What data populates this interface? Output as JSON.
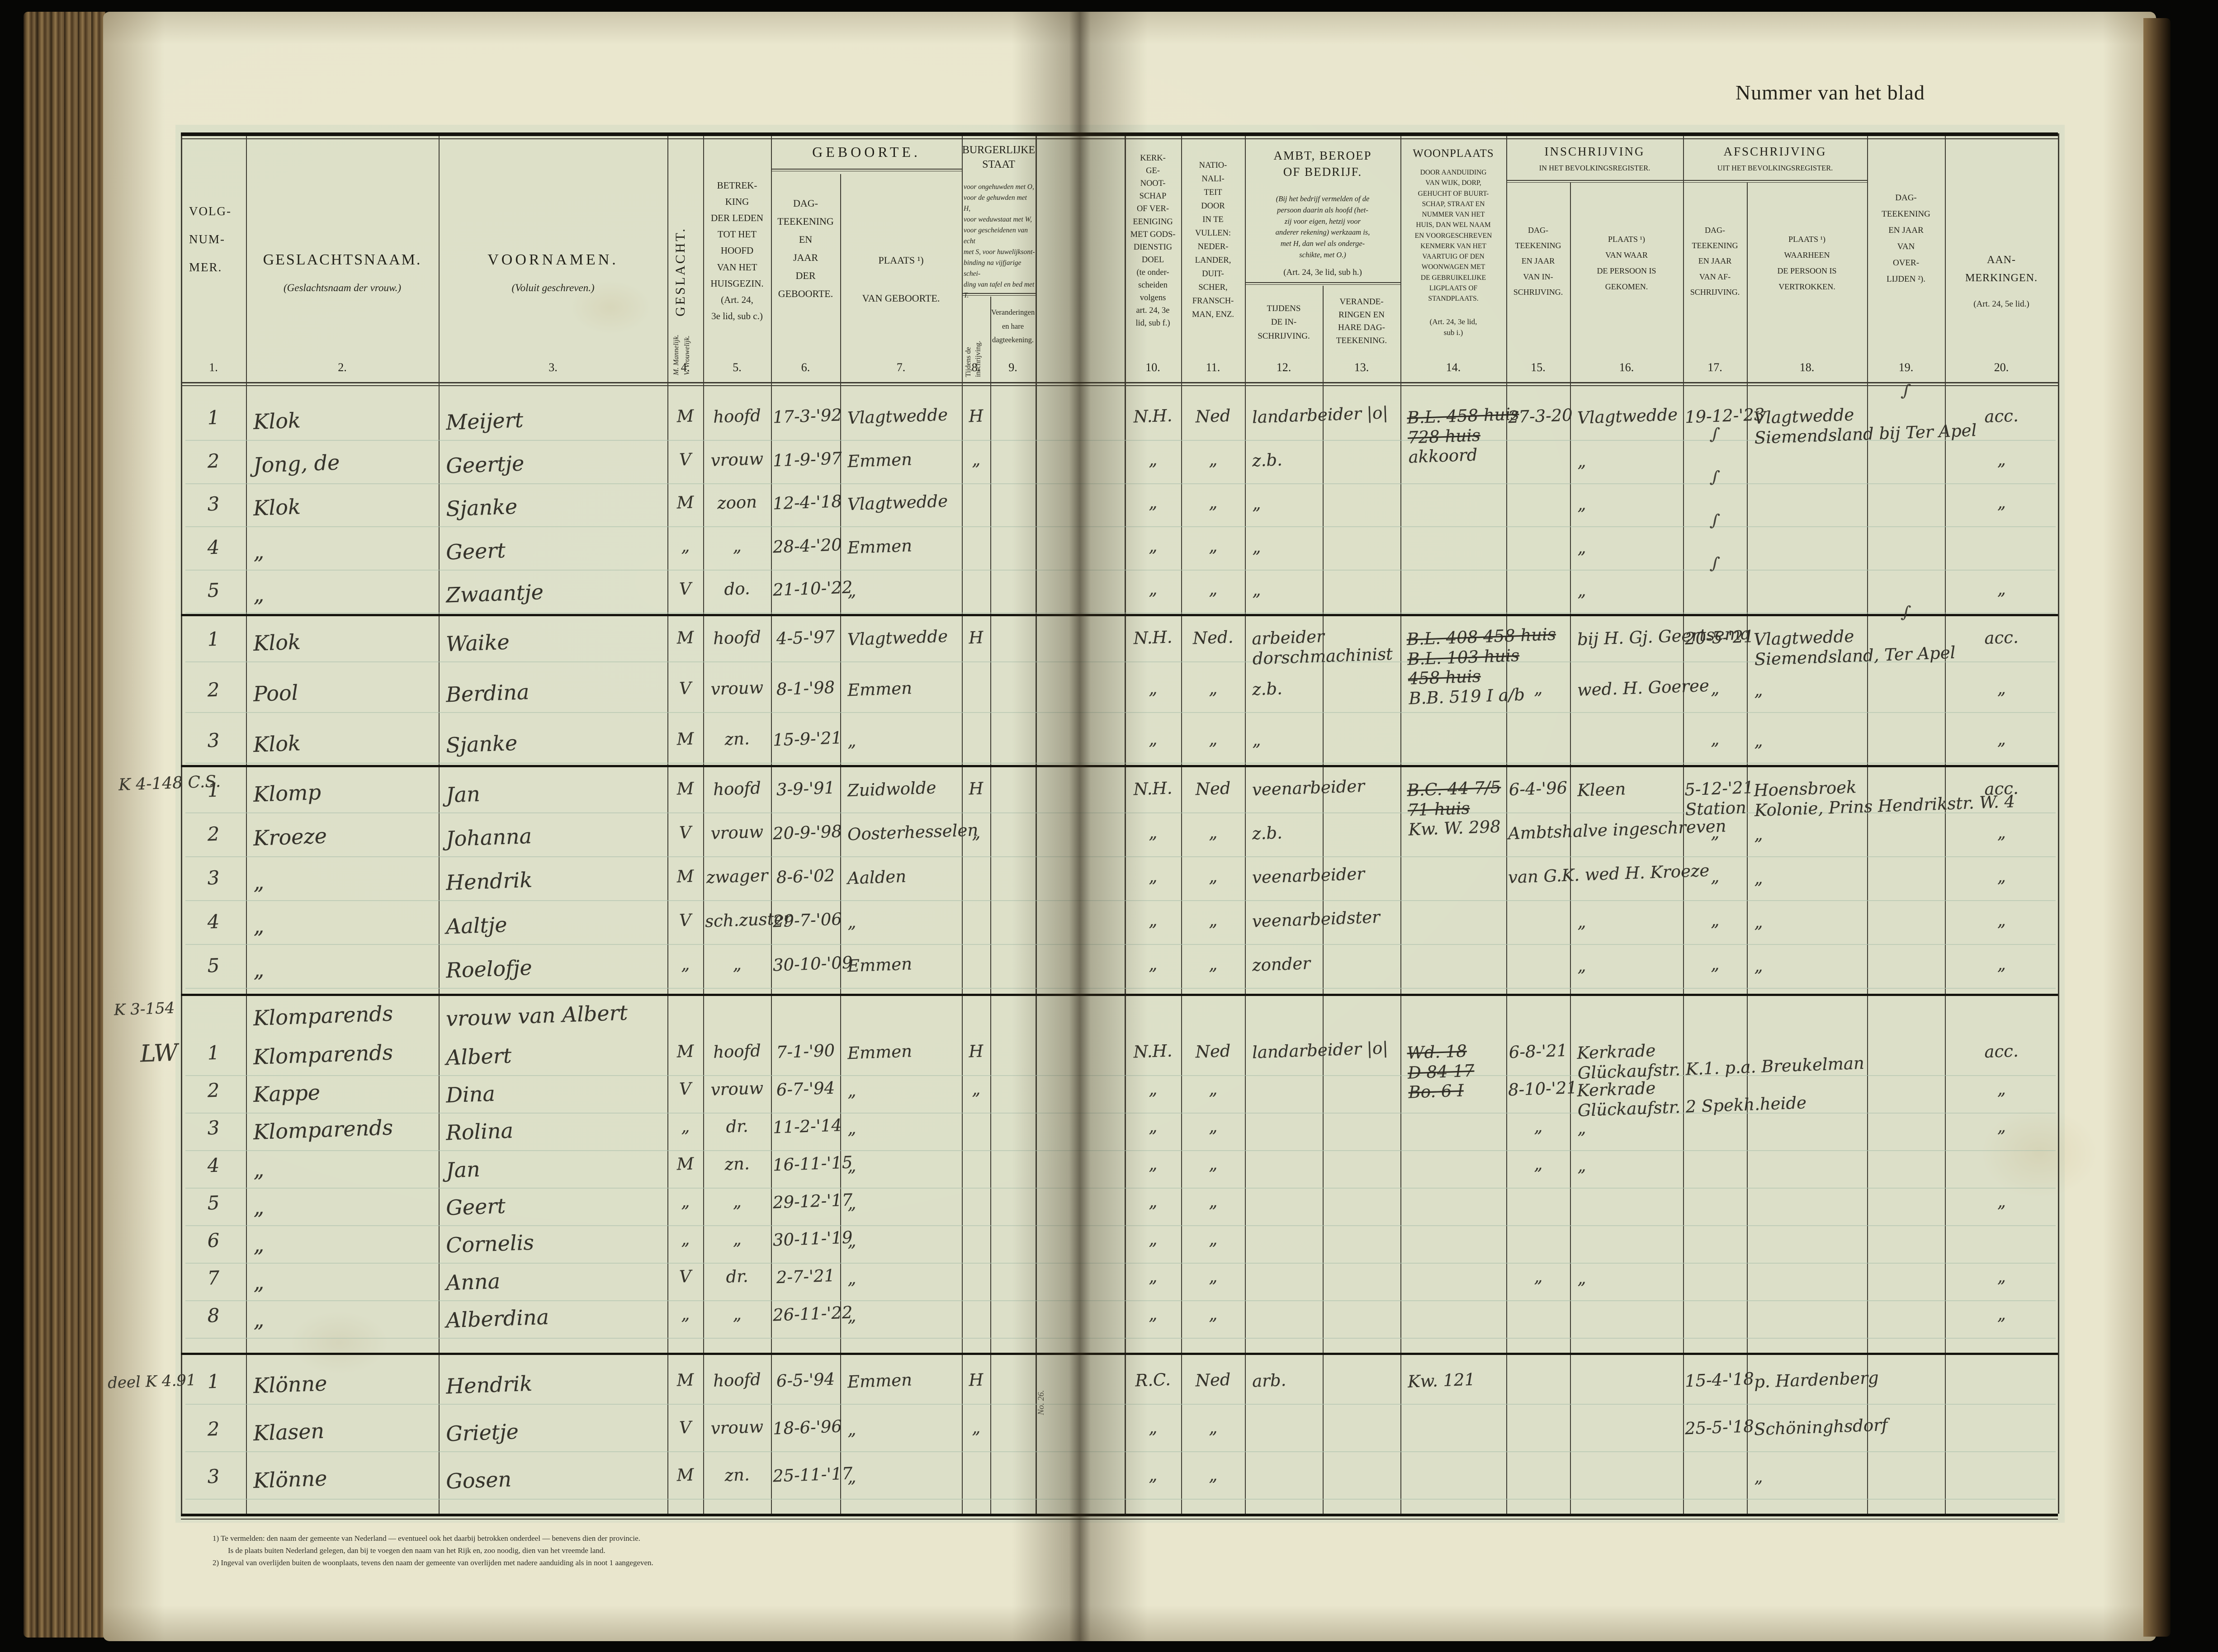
{
  "page": {
    "title": "Nummer van het blad",
    "gutter_label": "No. 26."
  },
  "header": {
    "nums": [
      "1.",
      "2.",
      "3.",
      "4.",
      "5.",
      "6.",
      "7.",
      "8.",
      "9.",
      "10.",
      "11.",
      "12.",
      "13.",
      "14.",
      "15.",
      "16.",
      "17.",
      "18.",
      "19.",
      "20."
    ],
    "col1": {
      "label": "VOLG-\n\nNUM-\n\nMER."
    },
    "col2": {
      "title": "GESLACHTSNAAM.",
      "sub": "(Geslachtsnaam der vrouw.)"
    },
    "col3": {
      "title": "VOORNAMEN.",
      "sub": "(Voluit geschreven.)"
    },
    "col4": {
      "label": "GESLACHT.",
      "note": "M. Mannelijk.\nV. Vrouwelijk."
    },
    "col5": {
      "label": "BETREK-\nKING\nDER LEDEN\nTOT HET\nHOOFD\nVAN HET\nHUISGEZIN.\n(Art. 24,\n3e lid, sub c.)"
    },
    "geboorte": {
      "title": "GEBOORTE.",
      "col6": {
        "label": "DAG-\nTEEKENING\nEN\nJAAR\nDER\nGEBOORTE."
      },
      "col7": {
        "label": "PLAATS ¹)\n\nVAN GEBOORTE."
      }
    },
    "burgerlijke_staat": {
      "title": "BURGERLIJKE\nSTAAT",
      "note": "voor ongehuwden met O,\nvoor de gehuwden met H,\nvoor weduwstaat met W,\nvoor gescheidenen van echt\nmet S, voor huwelijksont-\nbinding na vijfjarige schei-\nding van tafel en bed met T.",
      "col8": {
        "label": "Tijdens de\ninschrijving."
      },
      "col9": {
        "label": "Veranderingen\nen hare\ndagteekening."
      }
    },
    "col10": {
      "label": "KERK-\nGE-\nNOOT-\nSCHAP\nOF VER-\nEENIGING\nMET GODS-\nDIENSTIG\nDOEL\n(te onder-\nscheiden\nvolgens\nart. 24, 3e\nlid, sub f.)"
    },
    "col11": {
      "label": "NATIO-\nNALI-\nTEIT\nDOOR\nIN TE\nVULLEN:\nNEDER-\nLANDER,\nDUIT-\nSCHER,\nFRANSCH-\nMAN, ENZ."
    },
    "ambt": {
      "title": "AMBT, BEROEP\nOF BEDRIJF.",
      "note": "(Bij het bedrijf vermelden of de\npersoon daarin als hoofd (het-\nzij voor eigen, hetzij voor\nanderer rekening) werkzaam is,\nmet H, dan wel als onderge-\nschikte, met O.)",
      "art": "(Art. 24, 3e lid, sub h.)",
      "col12": {
        "label": "TIJDENS\nDE IN-\nSCHRIJVING."
      },
      "col13": {
        "label": "VERANDE-\nRINGEN EN\nHARE DAG-\nTEEKENING."
      }
    },
    "col14": {
      "title": "WOONPLAATS",
      "note": "DOOR AANDUIDING\nVAN WIJK, DORP,\nGEHUCHT OF BUURT-\nSCHAP, STRAAT EN\nNUMMER VAN HET\nHUIS, DAN WEL NAAM\nEN VOORGESCHREVEN\nKENMERK VAN HET\nVAARTUIG OF DEN\nWOONWAGEN MET\nDE GEBRUIKELIJKE\nLIGPLAATS OF\nSTANDPLAATS.",
      "art": "(Art. 24, 3e lid,\nsub i.)"
    },
    "inschrijving": {
      "title": "INSCHRIJVING",
      "sub": "IN HET BEVOLKINGSREGISTER.",
      "col15": {
        "label": "DAG-\nTEEKENING\nEN JAAR\nVAN IN-\nSCHRIJVING."
      },
      "col16": {
        "label": "PLAATS ¹)\nVAN WAAR\nDE PERSOON IS\nGEKOMEN."
      }
    },
    "afschrijving": {
      "title": "AFSCHRIJVING",
      "sub": "UIT HET BEVOLKINGSREGISTER.",
      "col17": {
        "label": "DAG-\nTEEKENING\nEN JAAR\nVAN AF-\nSCHRIJVING."
      },
      "col18": {
        "label": "PLAATS ¹)\nWAARHEEN\nDE PERSOON IS\nVERTROKKEN."
      }
    },
    "col19": {
      "label": "DAG-\nTEEKENING\nEN JAAR\nVAN\nOVER-\nLIJDEN ²)."
    },
    "col20": {
      "title": "AAN-\nMERKINGEN.",
      "art": "(Art. 24, 5e lid.)"
    }
  },
  "groups": [
    {
      "rows": [
        [
          "1",
          "Klok",
          "Meijert",
          "M",
          "hoofd",
          "17-3-'92",
          "Vlagtwedde",
          "H",
          "",
          "N.H.",
          "Ned",
          "landarbeider |o|",
          "",
          "~B.L. 458 huis\n~728 huis\nakkoord",
          "27-3-20",
          "Vlagtwedde",
          "19-12-'23",
          "Vlagtwedde\nSiemendsland bij Ter Apel",
          "∫",
          "acc."
        ],
        [
          "2",
          "Jong, de",
          "Geertje",
          "V",
          "vrouw",
          "11-9-'97",
          "Emmen",
          "„",
          "",
          "„",
          "„",
          "z.b.",
          "",
          "",
          "",
          "„",
          "∫",
          "",
          "",
          "„"
        ],
        [
          "3",
          "Klok",
          "Sjanke",
          "M",
          "zoon",
          "12-4-'18",
          "Vlagtwedde",
          "",
          "",
          "„",
          "„",
          "„",
          "",
          "",
          "",
          "„",
          "∫",
          "",
          "",
          "„"
        ],
        [
          "4",
          "„",
          "Geert",
          "„",
          "„",
          "28-4-'20",
          "Emmen",
          "",
          "",
          "„",
          "„",
          "„",
          "",
          "",
          "",
          "„",
          "∫",
          "",
          "",
          ""
        ],
        [
          "5",
          "„",
          "Zwaantje",
          "V",
          "do.",
          "21-10-'22",
          "„",
          "",
          "",
          "„",
          "„",
          "„",
          "",
          "",
          "",
          "„",
          "∫",
          "",
          "",
          "„"
        ]
      ]
    },
    {
      "rows": [
        [
          "1",
          "Klok",
          "Waike",
          "M",
          "hoofd",
          "4-5-'97",
          "Vlagtwedde",
          "H",
          "",
          "N.H.",
          "Ned.",
          "arbeider\ndorschmachinist",
          "",
          "~B.L. 408 458 huis\n~B.L. 103 huis\n~458 huis\nB.B. 519 I a/b",
          "",
          "bij H. Gj. Geertsema",
          "20-5-'21",
          "Vlagtwedde\nSiemendsland, Ter Apel",
          "∫",
          "acc."
        ],
        [
          "2",
          "Pool",
          "Berdina",
          "V",
          "vrouw",
          "8-1-'98",
          "Emmen",
          "",
          "",
          "„",
          "„",
          "z.b.",
          "",
          "",
          "„",
          "wed. H. Goeree",
          "„",
          "„",
          "",
          "„"
        ],
        [
          "3",
          "Klok",
          "Sjanke",
          "M",
          "zn.",
          "15-9-'21",
          "„",
          "",
          "",
          "„",
          "„",
          "„",
          "",
          "",
          "",
          "",
          "„",
          "„",
          "",
          "„"
        ]
      ]
    },
    {
      "margin": "K 4-148 C.S.",
      "rows": [
        [
          "1",
          "Klomp",
          "Jan",
          "M",
          "hoofd",
          "3-9-'91",
          "Zuidwolde",
          "H",
          "",
          "N.H.",
          "Ned",
          "veenarbeider",
          "",
          "~B.C. 44 7/5\n~71 huis\nKw. W. 298",
          "6-4-'96",
          "Kleen",
          "5-12-'21\nStation",
          "Hoensbroek\nKolonie, Prins Hendrikstr. W. 4",
          "",
          "acc."
        ],
        [
          "2",
          "Kroeze",
          "Johanna",
          "V",
          "vrouw",
          "20-9-'98",
          "Oosterhesselen",
          "„",
          "",
          "„",
          "„",
          "z.b.",
          "",
          "",
          "Ambtshalve ingeschreven",
          "",
          "„",
          "„",
          "",
          "„"
        ],
        [
          "3",
          "„",
          "Hendrik",
          "M",
          "zwager",
          "8-6-'02",
          "Aalden",
          "",
          "",
          "„",
          "„",
          "veenarbeider",
          "",
          "",
          "van G.K. wed H. Kroeze",
          "",
          "„",
          "„",
          "",
          "„"
        ],
        [
          "4",
          "„",
          "Aaltje",
          "V",
          "sch.zuster",
          "29-7-'06",
          "„",
          "",
          "",
          "„",
          "„",
          "veenarbeidster",
          "",
          "",
          "",
          "„",
          "„",
          "„",
          "",
          "„"
        ],
        [
          "5",
          "„",
          "Roelofje",
          "„",
          "„",
          "30-10-'09",
          "Emmen",
          "",
          "",
          "„",
          "„",
          "zonder",
          "",
          "",
          "",
          "„",
          "„",
          "„",
          "",
          "„"
        ]
      ]
    },
    {
      "margin": "K 3-154",
      "margin2": "LW",
      "prerow": [
        "",
        "Klomparends",
        "vrouw van Albert",
        "",
        "",
        "",
        "",
        "",
        "",
        "",
        "",
        "",
        "",
        "",
        "",
        "",
        "",
        "",
        "",
        ""
      ],
      "rows": [
        [
          "1",
          "Klomparends",
          "Albert",
          "M",
          "hoofd",
          "7-1-'90",
          "Emmen",
          "H",
          "",
          "N.H.",
          "Ned",
          "landarbeider |o|",
          "",
          "~Wd. 18\n~D 84 17\n~Bo. 6 I",
          "6-8-'21",
          "Kerkrade\nGlückaufstr. K.1. p.a. Breukelman",
          "",
          "",
          "",
          "acc."
        ],
        [
          "2",
          "Kappe",
          "Dina",
          "V",
          "vrouw",
          "6-7-'94",
          "„",
          "„",
          "",
          "„",
          "„",
          "",
          "",
          "",
          "8-10-'21",
          "Kerkrade\nGlückaufstr. 2 Spekh.heide",
          "",
          "",
          "",
          "„"
        ],
        [
          "3",
          "Klomparends",
          "Rolina",
          "„",
          "dr.",
          "11-2-'14",
          "„",
          "",
          "",
          "„",
          "„",
          "",
          "",
          "",
          "„",
          "„",
          "",
          "",
          "",
          "„"
        ],
        [
          "4",
          "„",
          "Jan",
          "M",
          "zn.",
          "16-11-'15",
          "„",
          "",
          "",
          "„",
          "„",
          "",
          "",
          "",
          "„",
          "„",
          "",
          "",
          "",
          ""
        ],
        [
          "5",
          "„",
          "Geert",
          "„",
          "„",
          "29-12-'17",
          "„",
          "",
          "",
          "„",
          "„",
          "",
          "",
          "",
          "",
          "",
          "",
          "",
          "",
          "„"
        ],
        [
          "6",
          "„",
          "Cornelis",
          "„",
          "„",
          "30-11-'19",
          "„",
          "",
          "",
          "„",
          "„",
          "",
          "",
          "",
          "",
          "",
          "",
          "",
          "",
          ""
        ],
        [
          "7",
          "„",
          "Anna",
          "V",
          "dr.",
          "2-7-'21",
          "„",
          "",
          "",
          "„",
          "„",
          "",
          "",
          "",
          "„",
          "„",
          "",
          "",
          "",
          "„"
        ],
        [
          "8",
          "„",
          "Alberdina",
          "„",
          "„",
          "26-11-'22",
          "„",
          "",
          "",
          "„",
          "„",
          "",
          "",
          "",
          "",
          "",
          "",
          "",
          "",
          "„"
        ]
      ]
    },
    {
      "margin": "deel K 4.91",
      "rows": [
        [
          "1",
          "Klönne",
          "Hendrik",
          "M",
          "hoofd",
          "6-5-'94",
          "Emmen",
          "H",
          "",
          "R.C.",
          "Ned",
          "arb.",
          "",
          "Kw. 121",
          "",
          "",
          "15-4-'18",
          "p. Hardenberg",
          "",
          ""
        ],
        [
          "2",
          "Klasen",
          "Grietje",
          "V",
          "vrouw",
          "18-6-'96",
          "„",
          "„",
          "",
          "„",
          "„",
          "",
          "",
          "",
          "",
          "",
          "25-5-'18",
          "Schöninghsdorf",
          "",
          ""
        ],
        [
          "3",
          "Klönne",
          "Gosen",
          "M",
          "zn.",
          "25-11-'17",
          "„",
          "",
          "",
          "„",
          "„",
          "",
          "",
          "",
          "",
          "",
          "",
          "„",
          "",
          ""
        ]
      ]
    }
  ],
  "footnotes": [
    "1)  Te vermelden: den naam der gemeente van Nederland — eventueel ook het daarbij betrokken onderdeel — benevens dien der provincie.",
    "Is de plaats buiten Nederland gelegen, dan bij te voegen den naam van het Rijk en, zoo noodig, dien van het vreemde land.",
    "2)  Ingeval van overlijden buiten de woonplaats, tevens den naam der gemeente van overlijden met nadere aanduiding als in noot 1 aangegeven."
  ]
}
